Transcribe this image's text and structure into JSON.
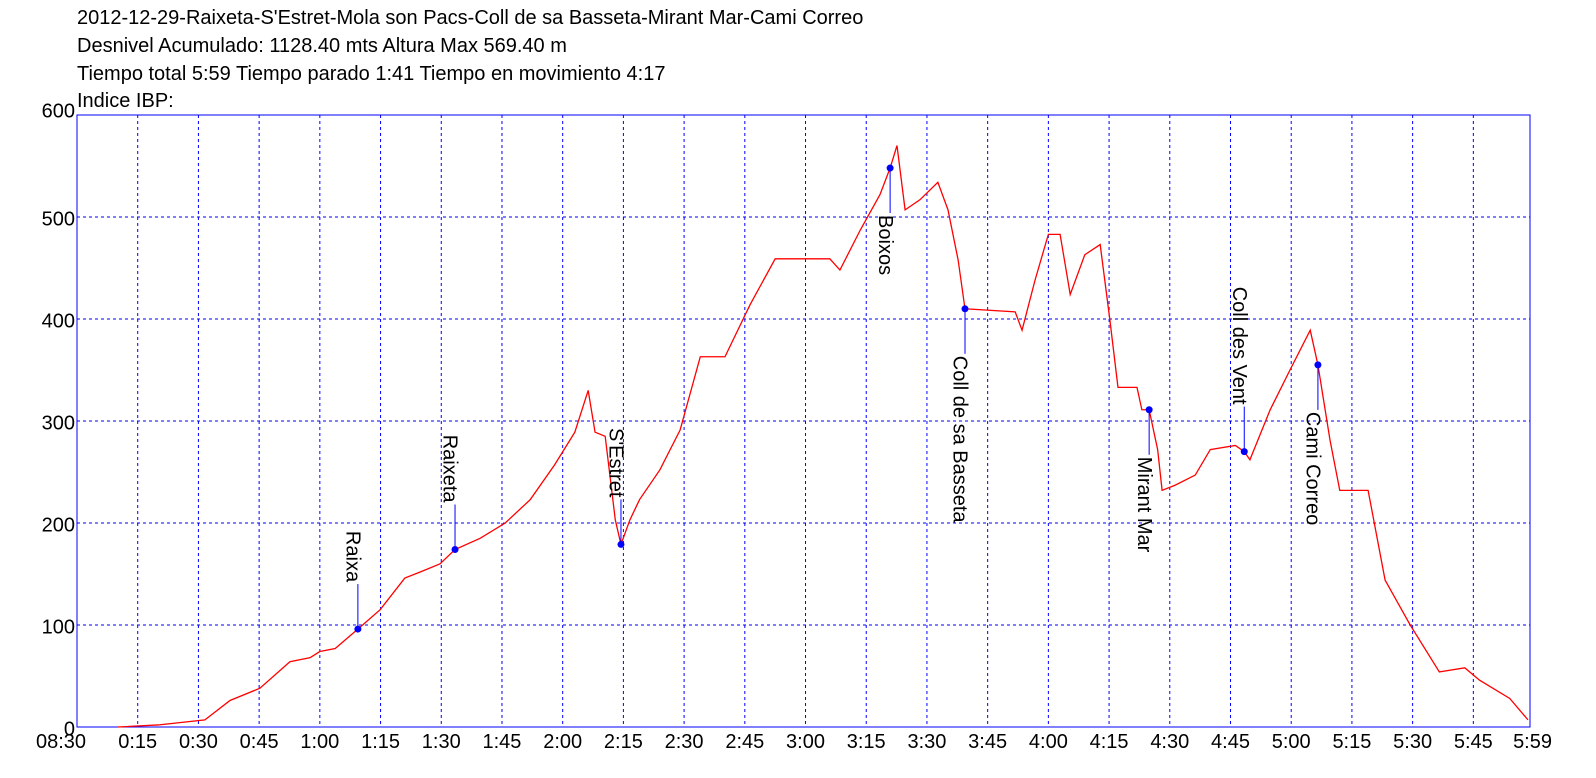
{
  "chart_data": {
    "type": "line",
    "title": "2012-12-29-Raixeta-S'Estret-Mola son Pacs-Coll de sa Basseta-Mirant Mar-Cami Correo",
    "subtitles": [
      "Desnivel Acumulado: 1128.40 mts  Altura Max 569.40 m",
      "Tiempo total 5:59 Tiempo parado 1:41 Tiempo en movimiento 4:17",
      "Indice IBP:"
    ],
    "x": [
      10,
      20,
      31.6,
      37.8,
      45.2,
      52.6,
      57.6,
      60,
      63.8,
      69.4,
      74.9,
      81,
      84.8,
      89.7,
      93.4,
      99.6,
      105.8,
      112,
      118,
      123,
      126.3,
      128,
      130.5,
      133,
      134.4,
      136.6,
      139,
      144,
      149,
      154,
      160.1,
      166.3,
      172.5,
      186,
      188.5,
      193.5,
      198.4,
      200.9,
      202.6,
      204.6,
      208.3,
      212.7,
      215.2,
      217.7,
      219.4,
      231.8,
      233.5,
      236.7,
      240,
      242.9,
      245.4,
      249,
      252.8,
      255.2,
      257.2,
      261.9,
      263.1,
      264.9,
      267,
      268.1,
      271.3,
      276.3,
      280,
      286.2,
      288.4,
      289.8,
      294.8,
      299.7,
      304.7,
      306.6,
      309.6,
      312,
      319,
      323.2,
      329.4,
      336.6,
      342.9,
      346.5,
      354,
      358.5
    ],
    "series": [
      {
        "color": "#ff0000",
        "values": [
          0,
          2,
          7,
          26,
          38,
          64,
          68,
          74,
          77,
          96,
          115,
          146,
          152,
          160,
          174,
          185,
          200,
          223,
          257,
          289,
          330,
          289,
          285,
          203,
          179,
          203,
          223,
          252,
          291,
          363,
          363,
          414,
          459,
          459,
          448,
          487,
          522,
          548,
          570,
          507,
          517,
          534,
          507,
          458,
          410,
          407,
          389,
          438,
          483,
          483,
          424,
          463,
          473,
          399,
          333,
          333,
          311,
          311,
          272,
          232,
          237,
          247,
          272,
          276,
          270,
          262,
          311,
          350,
          389,
          355,
          281,
          232,
          232,
          144,
          100,
          54,
          58,
          46,
          28,
          7
        ]
      }
    ],
    "annotations": [
      {
        "label": "Raixa",
        "x": 69.4,
        "y": 96
      },
      {
        "label": "Raixeta",
        "x": 93.4,
        "y": 174
      },
      {
        "label": "S'Estret",
        "x": 134.4,
        "y": 179
      },
      {
        "label": "Boixos",
        "x": 200.9,
        "y": 548
      },
      {
        "label": "Coll de sa Basseta",
        "x": 219.4,
        "y": 410
      },
      {
        "label": "Mirant Mar",
        "x": 264.9,
        "y": 311
      },
      {
        "label": "Coll des Vent",
        "x": 288.4,
        "y": 270
      },
      {
        "label": "Cami Correo",
        "x": 306.6,
        "y": 355
      }
    ],
    "marker_color": "#0000ff",
    "grid_color": "#0000ff",
    "grid": true,
    "xlim": [
      0,
      359
    ],
    "xticks": [
      {
        "value": 0,
        "label": "08:30"
      },
      {
        "value": 15,
        "label": "0:15"
      },
      {
        "value": 30,
        "label": "0:30"
      },
      {
        "value": 45,
        "label": "0:45"
      },
      {
        "value": 60,
        "label": "1:00"
      },
      {
        "value": 75,
        "label": "1:15"
      },
      {
        "value": 90,
        "label": "1:30"
      },
      {
        "value": 105,
        "label": "1:45"
      },
      {
        "value": 120,
        "label": "2:00"
      },
      {
        "value": 135,
        "label": "2:15"
      },
      {
        "value": 150,
        "label": "2:30"
      },
      {
        "value": 165,
        "label": "2:45"
      },
      {
        "value": 180,
        "label": "3:00"
      },
      {
        "value": 195,
        "label": "3:15"
      },
      {
        "value": 210,
        "label": "3:30"
      },
      {
        "value": 225,
        "label": "3:45"
      },
      {
        "value": 240,
        "label": "4:00"
      },
      {
        "value": 255,
        "label": "4:15"
      },
      {
        "value": 270,
        "label": "4:30"
      },
      {
        "value": 285,
        "label": "4:45"
      },
      {
        "value": 300,
        "label": "5:00"
      },
      {
        "value": 315,
        "label": "5:15"
      },
      {
        "value": 330,
        "label": "5:30"
      },
      {
        "value": 345,
        "label": "5:45"
      },
      {
        "value": 359,
        "label": "5:59"
      }
    ],
    "ylim": [
      0,
      600
    ],
    "yticks": [
      0,
      100,
      200,
      300,
      400,
      500,
      600
    ]
  }
}
